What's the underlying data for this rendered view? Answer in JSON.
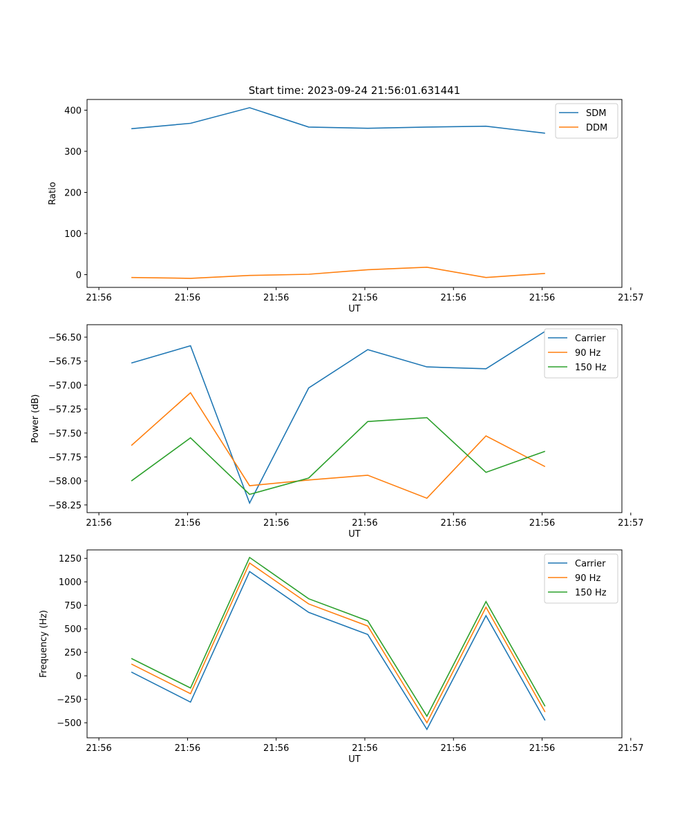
{
  "figure": {
    "title": "Start time: 2023-09-24 21:56:01.631441"
  },
  "chart_data": [
    {
      "type": "line",
      "xlabel": "UT",
      "ylabel": "Ratio",
      "x": [
        1.0,
        2.0,
        3.0,
        4.0,
        5.0,
        6.0,
        7.0,
        8.0
      ],
      "xlim": [
        0.25,
        9.3
      ],
      "ylim": [
        -31,
        426
      ],
      "xticks": [
        0.45,
        1.95,
        3.45,
        4.95,
        6.45,
        7.95,
        9.45
      ],
      "xtick_labels": [
        "21:56",
        "21:56",
        "21:56",
        "21:56",
        "21:56",
        "21:56",
        "21:57"
      ],
      "yticks": [
        0,
        100,
        200,
        300,
        400
      ],
      "ytick_labels": [
        "0",
        "100",
        "200",
        "300",
        "400"
      ],
      "legend_position": "top-right",
      "series": [
        {
          "name": "SDM",
          "color": "#1f77b4",
          "values": [
            355,
            368,
            406,
            359,
            356,
            359,
            361,
            344
          ]
        },
        {
          "name": "DDM",
          "color": "#ff7f0e",
          "values": [
            -7,
            -9,
            -2,
            1,
            12,
            18,
            -7,
            3
          ]
        }
      ]
    },
    {
      "type": "line",
      "xlabel": "UT",
      "ylabel": "Power (dB)",
      "x": [
        1.0,
        2.0,
        3.0,
        4.0,
        5.0,
        6.0,
        7.0,
        8.0
      ],
      "xlim": [
        0.25,
        9.3
      ],
      "ylim": [
        -58.33,
        -56.37
      ],
      "xticks": [
        0.45,
        1.95,
        3.45,
        4.95,
        6.45,
        7.95,
        9.45
      ],
      "xtick_labels": [
        "21:56",
        "21:56",
        "21:56",
        "21:56",
        "21:56",
        "21:56",
        "21:57"
      ],
      "yticks": [
        -58.25,
        -58.0,
        -57.75,
        -57.5,
        -57.25,
        -57.0,
        -56.75,
        -56.5
      ],
      "ytick_labels": [
        "−58.25",
        "−58.00",
        "−57.75",
        "−57.50",
        "−57.25",
        "−57.00",
        "−56.75",
        "−56.50"
      ],
      "legend_position": "top-right",
      "series": [
        {
          "name": "Carrier",
          "color": "#1f77b4",
          "values": [
            -56.77,
            -56.59,
            -58.23,
            -57.03,
            -56.63,
            -56.81,
            -56.83,
            -56.44
          ]
        },
        {
          "name": "90 Hz",
          "color": "#ff7f0e",
          "values": [
            -57.63,
            -57.08,
            -58.05,
            -57.99,
            -57.94,
            -58.18,
            -57.53,
            -57.85
          ]
        },
        {
          "name": "150 Hz",
          "color": "#2ca02c",
          "values": [
            -58.0,
            -57.55,
            -58.14,
            -57.97,
            -57.38,
            -57.34,
            -57.91,
            -57.69
          ]
        }
      ]
    },
    {
      "type": "line",
      "xlabel": "UT",
      "ylabel": "Frequency (Hz)",
      "x": [
        1.0,
        2.0,
        3.0,
        4.0,
        5.0,
        6.0,
        7.0,
        8.0
      ],
      "xlim": [
        0.25,
        9.3
      ],
      "ylim": [
        -660,
        1340
      ],
      "xticks": [
        0.45,
        1.95,
        3.45,
        4.95,
        6.45,
        7.95,
        9.45
      ],
      "xtick_labels": [
        "21:56",
        "21:56",
        "21:56",
        "21:56",
        "21:56",
        "21:56",
        "21:57"
      ],
      "yticks": [
        -500,
        -250,
        0,
        250,
        500,
        750,
        1000,
        1250
      ],
      "ytick_labels": [
        "−500",
        "−250",
        "0",
        "250",
        "500",
        "750",
        "1000",
        "1250"
      ],
      "legend_position": "top-right",
      "series": [
        {
          "name": "Carrier",
          "color": "#1f77b4",
          "values": [
            40,
            -280,
            1110,
            675,
            440,
            -570,
            640,
            -475
          ]
        },
        {
          "name": "90 Hz",
          "color": "#ff7f0e",
          "values": [
            125,
            -190,
            1200,
            765,
            530,
            -500,
            730,
            -385
          ]
        },
        {
          "name": "150 Hz",
          "color": "#2ca02c",
          "values": [
            185,
            -130,
            1260,
            820,
            585,
            -430,
            790,
            -325
          ]
        }
      ]
    }
  ]
}
